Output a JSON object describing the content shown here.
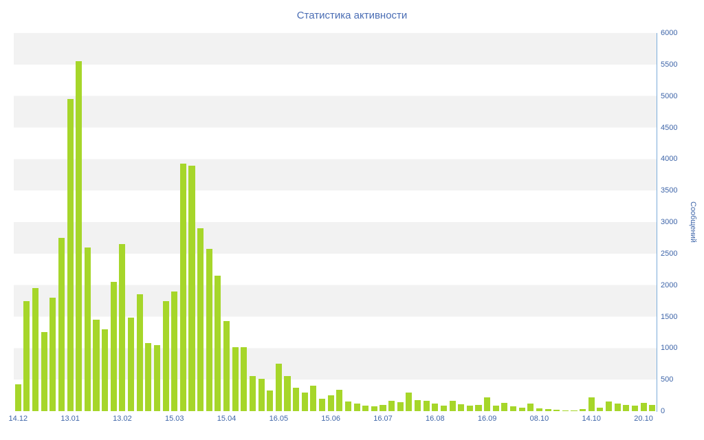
{
  "title": "Статистика активности",
  "chart_data": {
    "type": "bar",
    "title": "Статистика активности",
    "xlabel": "",
    "ylabel": "Сообщений",
    "ylim": [
      0,
      6000
    ],
    "grid": "horizontal-bands",
    "legend": "none",
    "y_axis_position": "right",
    "y_ticks": [
      0,
      500,
      1000,
      1500,
      2000,
      2500,
      3000,
      3500,
      4000,
      4500,
      5000,
      5500,
      6000
    ],
    "x_tick_labels": [
      "14.12",
      "13.01",
      "13.02",
      "15.03",
      "15.04",
      "16.05",
      "15.06",
      "16.07",
      "16.08",
      "16.09",
      "08.10",
      "14.10",
      "20.10"
    ],
    "x_tick_every": 6,
    "values": [
      430,
      1750,
      1950,
      1250,
      1800,
      2750,
      4950,
      5550,
      2600,
      1450,
      1300,
      2050,
      2650,
      1480,
      1850,
      1080,
      1050,
      1750,
      1900,
      3930,
      3890,
      2900,
      2570,
      2150,
      1430,
      1010,
      1020,
      560,
      510,
      330,
      750,
      560,
      370,
      300,
      400,
      200,
      250,
      340,
      150,
      120,
      90,
      80,
      100,
      160,
      140,
      300,
      170,
      160,
      120,
      90,
      160,
      110,
      90,
      100,
      220,
      90,
      130,
      80,
      60,
      120,
      40,
      30,
      20,
      15,
      10,
      30,
      220,
      60,
      150,
      120,
      100,
      90,
      130,
      100
    ],
    "colors": {
      "bar": "#a6d62a",
      "band": "#f2f2f2",
      "axis": "#7aabda",
      "text": "#3d64a8",
      "title": "#4a6db4",
      "background": "#ffffff"
    }
  }
}
